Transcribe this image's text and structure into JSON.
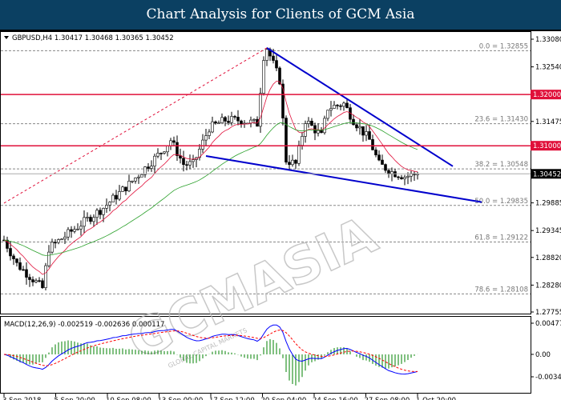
{
  "title": "Chart Analysis for Clients of GCM Asia",
  "chart_data": {
    "type": "candlestick",
    "symbol_header": "GBPUSD,H4  1.30417 1.30468 1.30365 1.30452",
    "ylim": [
      1.27755,
      1.3308
    ],
    "y_ticks": [
      "1.33080",
      "1.32540",
      "1.31475",
      "1.29885",
      "1.29345",
      "1.28820",
      "1.28280",
      "1.27755"
    ],
    "x_ticks": [
      "3 Sep 2018",
      "5 Sep 20:00",
      "10 Sep 08:00",
      "13 Sep 00:00",
      "17 Sep 12:00",
      "20 Sep 04:00",
      "24 Sep 16:00",
      "27 Sep 08:00",
      "1 Oct 20:00"
    ],
    "close_path": [
      [
        0,
        1.2916
      ],
      [
        4,
        1.2869
      ],
      [
        12,
        1.2822
      ],
      [
        14,
        1.29
      ],
      [
        24,
        1.2947
      ],
      [
        31,
        1.2979
      ],
      [
        39,
        1.3025
      ],
      [
        49,
        1.3088
      ],
      [
        52,
        1.3111
      ],
      [
        56,
        1.3064
      ],
      [
        59,
        1.3064
      ],
      [
        64,
        1.3135
      ],
      [
        69,
        1.315
      ],
      [
        74,
        1.315
      ],
      [
        79,
        1.3143
      ],
      [
        81,
        1.3275
      ],
      [
        82,
        1.3291
      ],
      [
        86,
        1.3228
      ],
      [
        88,
        1.3072
      ],
      [
        91,
        1.3064
      ],
      [
        94,
        1.315
      ],
      [
        99,
        1.3119
      ],
      [
        101,
        1.3174
      ],
      [
        106,
        1.3182
      ],
      [
        109,
        1.315
      ],
      [
        114,
        1.3111
      ],
      [
        117,
        1.3064
      ],
      [
        121,
        1.3049
      ],
      [
        125,
        1.304
      ],
      [
        129,
        1.30452
      ]
    ],
    "current_price": {
      "label": "1.30452",
      "value": 1.30452,
      "color": "#000000"
    },
    "horizontal_levels": [
      {
        "label": "1.32000",
        "value": 1.32,
        "color": "#e0103a"
      },
      {
        "label": "1.31000",
        "value": 1.31,
        "color": "#e0103a"
      }
    ],
    "fibonacci": [
      {
        "label": "0.0 = 1.32855",
        "value": 1.32855
      },
      {
        "label": "23.6 = 1.31430",
        "value": 1.3143
      },
      {
        "label": "38.2 = 1.30548",
        "value": 1.30548
      },
      {
        "label": "50.0 = 1.29835",
        "value": 1.29835
      },
      {
        "label": "61.8 = 1.29122",
        "value": 1.29122
      },
      {
        "label": "78.6 = 1.28108",
        "value": 1.28108
      }
    ],
    "trendlines": [
      {
        "from": [
          82,
          1.3291
        ],
        "to": [
          140,
          1.306
        ],
        "color": "#0000cc"
      },
      {
        "from": [
          63,
          1.308
        ],
        "to": [
          149,
          1.299
        ],
        "color": "#0000cc"
      },
      {
        "from": [
          0,
          1.2988
        ],
        "to": [
          82,
          1.3291
        ],
        "color": "#e0103a",
        "style": "dashed"
      }
    ],
    "moving_averages": [
      {
        "color": "#e0103a",
        "period": 10
      },
      {
        "color": "#2aa02a",
        "period": 40
      }
    ],
    "macd": {
      "label": "MACD(12,26,9) -0.002519 -0.002636 0.000117",
      "ylim": [
        -0.003437,
        0.004775
      ],
      "y_ticks": [
        "0.004775",
        "0.00",
        "-0.003437"
      ],
      "macd_color": "#0000ff",
      "signal_color": "#ff0000",
      "hist_color": "#008000"
    },
    "watermark": {
      "text": "GCMASIA",
      "sub": "GLOBAL CAPITAL MARKETS"
    }
  }
}
